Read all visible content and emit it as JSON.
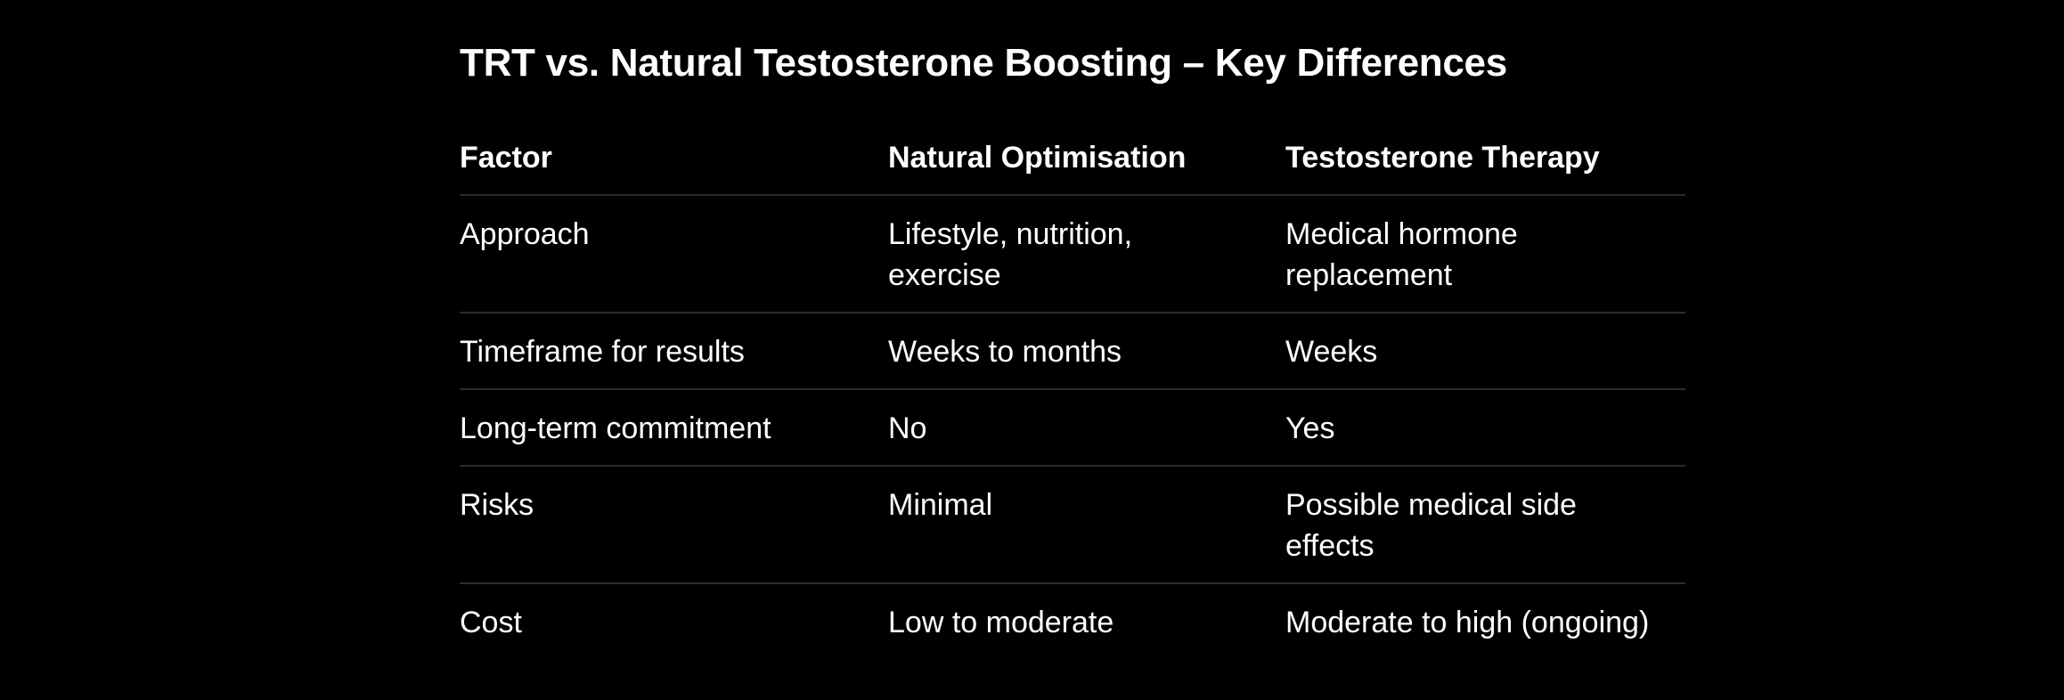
{
  "colors": {
    "background": "#000000",
    "text": "#ffffff",
    "divider": "#2c2c2e"
  },
  "title": "TRT vs. Natural Testosterone Boosting – Key Differences",
  "table": {
    "columns": [
      "Factor",
      "Natural Optimisation",
      "Testosterone Therapy"
    ],
    "rows": [
      {
        "cells": [
          "Approach",
          "Lifestyle, nutrition, exercise",
          "Medical hormone replacement"
        ]
      },
      {
        "cells": [
          "Timeframe for results",
          "Weeks to months",
          "Weeks"
        ]
      },
      {
        "cells": [
          "Long-term commitment",
          "No",
          "Yes"
        ]
      },
      {
        "cells": [
          "Risks",
          "Minimal",
          "Possible medical side effects"
        ]
      },
      {
        "cells": [
          "Cost",
          "Low to moderate",
          "Moderate to high (ongoing)"
        ]
      }
    ]
  }
}
